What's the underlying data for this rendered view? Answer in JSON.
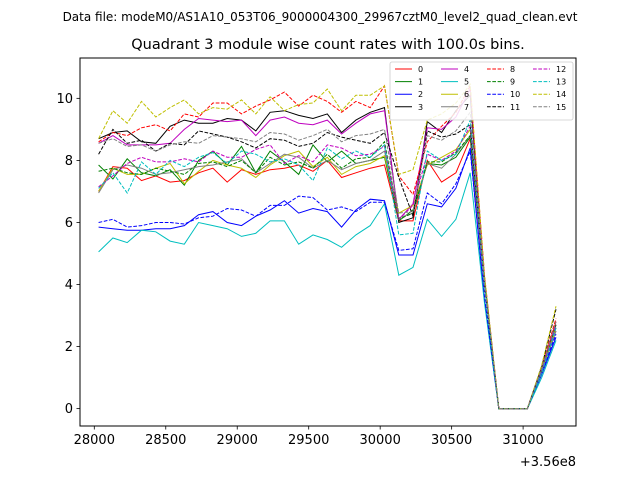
{
  "suptitle": "Data file: modeM0/AS1A10_053T06_9000004300_29967cztM0_level2_quad_clean.evt",
  "chart_data": {
    "type": "line",
    "title": "Quadrant 3 module wise count rates with 100.0s bins.",
    "xlabel": "",
    "ylabel": "",
    "x_offset_label": "+3.56e8",
    "xlim": [
      27900,
      31370
    ],
    "ylim": [
      -0.56,
      11.3
    ],
    "x_ticks": [
      28000,
      28500,
      29000,
      29500,
      30000,
      30500,
      31000
    ],
    "x_tick_labels": [
      "28000",
      "28500",
      "29000",
      "29500",
      "30000",
      "30500",
      "31000"
    ],
    "y_ticks": [
      0,
      2,
      4,
      6,
      8,
      10
    ],
    "y_tick_labels": [
      "0",
      "2",
      "4",
      "6",
      "8",
      "10"
    ],
    "legend_location": "upper-right",
    "x": [
      28030,
      28130,
      28230,
      28330,
      28430,
      28530,
      28630,
      28730,
      28830,
      28930,
      29030,
      29130,
      29230,
      29330,
      29430,
      29530,
      29630,
      29730,
      29830,
      29930,
      30030,
      30130,
      30230,
      30330,
      30430,
      30530,
      30630,
      30730,
      30830,
      30930,
      31030,
      31130,
      31230
    ],
    "series": [
      {
        "name": "0",
        "color": "#ff0000",
        "dash": "solid",
        "values": [
          7.0,
          7.8,
          7.75,
          7.35,
          7.5,
          7.3,
          7.35,
          7.6,
          7.75,
          7.3,
          7.7,
          7.55,
          7.7,
          7.75,
          7.85,
          7.65,
          8.0,
          7.45,
          7.6,
          7.75,
          7.85,
          6.05,
          6.05,
          8.0,
          7.3,
          7.6,
          8.7,
          4.0,
          0.0,
          0.0,
          0.0,
          1.3,
          2.8
        ]
      },
      {
        "name": "1",
        "color": "#008000",
        "dash": "solid",
        "values": [
          7.85,
          7.4,
          8.05,
          7.6,
          7.5,
          7.7,
          7.2,
          8.0,
          8.3,
          7.85,
          8.45,
          7.6,
          8.3,
          7.95,
          7.55,
          8.5,
          7.95,
          8.3,
          7.9,
          8.0,
          8.1,
          6.05,
          6.4,
          7.9,
          7.85,
          8.1,
          8.75,
          4.2,
          0.0,
          0.0,
          0.0,
          1.2,
          2.7
        ]
      },
      {
        "name": "2",
        "color": "#0000ff",
        "dash": "solid",
        "values": [
          5.85,
          5.8,
          5.75,
          5.75,
          5.8,
          5.8,
          5.9,
          6.25,
          6.35,
          6.0,
          5.9,
          6.2,
          6.4,
          6.7,
          6.3,
          6.45,
          6.35,
          5.85,
          6.4,
          6.75,
          6.7,
          4.95,
          4.95,
          6.6,
          6.5,
          7.1,
          8.4,
          3.5,
          0.0,
          0.0,
          0.0,
          1.1,
          2.3
        ]
      },
      {
        "name": "3",
        "color": "#000000",
        "dash": "solid",
        "values": [
          8.7,
          8.9,
          8.95,
          8.6,
          8.55,
          9.1,
          9.3,
          9.2,
          9.2,
          9.35,
          9.3,
          8.95,
          9.55,
          9.6,
          9.45,
          9.35,
          9.5,
          8.9,
          9.3,
          9.55,
          9.7,
          6.0,
          6.15,
          9.25,
          8.9,
          9.6,
          10.1,
          4.0,
          0.0,
          0.0,
          0.0,
          1.25,
          2.6
        ]
      },
      {
        "name": "4",
        "color": "#bf00bf",
        "dash": "solid",
        "values": [
          8.55,
          8.8,
          8.5,
          8.5,
          8.5,
          8.55,
          9.0,
          9.35,
          9.3,
          9.25,
          9.3,
          8.8,
          9.3,
          9.4,
          9.2,
          9.15,
          9.3,
          8.85,
          9.2,
          9.5,
          9.6,
          6.1,
          6.6,
          9.05,
          9.0,
          9.4,
          10.3,
          4.2,
          0.0,
          0.0,
          0.0,
          1.3,
          2.5
        ]
      },
      {
        "name": "5",
        "color": "#00bfbf",
        "dash": "solid",
        "values": [
          5.05,
          5.5,
          5.35,
          5.75,
          5.7,
          5.4,
          5.3,
          6.0,
          5.9,
          5.8,
          5.55,
          5.65,
          6.05,
          6.05,
          5.3,
          5.6,
          5.45,
          5.2,
          5.6,
          5.9,
          6.6,
          4.3,
          4.55,
          6.1,
          5.55,
          6.1,
          7.6,
          3.4,
          0.0,
          0.0,
          0.0,
          1.0,
          2.2
        ]
      },
      {
        "name": "6",
        "color": "#bfbf00",
        "dash": "solid",
        "values": [
          7.0,
          7.75,
          7.55,
          7.55,
          7.75,
          7.9,
          7.25,
          7.65,
          8.0,
          7.85,
          7.75,
          7.45,
          7.85,
          8.15,
          8.3,
          7.8,
          8.1,
          7.55,
          7.8,
          7.9,
          8.15,
          6.3,
          6.55,
          7.85,
          8.1,
          8.35,
          9.0,
          4.1,
          0.0,
          0.0,
          0.0,
          1.2,
          2.6
        ]
      },
      {
        "name": "7",
        "color": "#808080",
        "dash": "solid",
        "values": [
          6.95,
          7.7,
          7.85,
          7.75,
          7.55,
          7.6,
          7.7,
          7.8,
          7.85,
          7.95,
          8.05,
          7.6,
          7.9,
          8.2,
          8.1,
          7.75,
          8.0,
          7.7,
          7.9,
          8.0,
          8.3,
          6.15,
          6.3,
          7.9,
          7.75,
          8.2,
          8.8,
          4.0,
          0.0,
          0.0,
          0.0,
          1.15,
          2.5
        ]
      },
      {
        "name": "8",
        "color": "#ff0000",
        "dash": "dashed",
        "values": [
          8.6,
          8.9,
          8.8,
          9.05,
          9.15,
          8.95,
          9.5,
          9.4,
          9.85,
          9.85,
          9.5,
          9.75,
          9.95,
          10.2,
          9.75,
          10.1,
          9.9,
          9.55,
          9.9,
          9.7,
          10.4,
          7.5,
          6.9,
          8.6,
          9.1,
          9.55,
          10.4,
          4.3,
          0.0,
          0.0,
          0.0,
          1.35,
          2.9
        ]
      },
      {
        "name": "9",
        "color": "#008000",
        "dash": "dashed",
        "values": [
          7.65,
          7.75,
          7.6,
          7.55,
          7.75,
          7.65,
          7.55,
          7.9,
          7.95,
          7.8,
          8.0,
          7.6,
          8.1,
          7.85,
          7.95,
          7.75,
          8.2,
          7.75,
          8.05,
          8.1,
          8.6,
          6.1,
          6.3,
          7.95,
          7.95,
          8.25,
          8.8,
          4.1,
          0.0,
          0.0,
          0.0,
          1.25,
          2.7
        ]
      },
      {
        "name": "10",
        "color": "#0000ff",
        "dash": "dashed",
        "values": [
          6.0,
          6.1,
          5.85,
          5.9,
          6.0,
          6.0,
          5.95,
          6.15,
          6.2,
          6.45,
          6.4,
          6.2,
          6.55,
          6.55,
          6.85,
          6.8,
          6.4,
          6.5,
          6.35,
          6.65,
          6.65,
          5.1,
          5.15,
          6.95,
          6.6,
          7.25,
          8.3,
          3.6,
          0.0,
          0.0,
          0.0,
          1.15,
          2.4
        ]
      },
      {
        "name": "11",
        "color": "#000000",
        "dash": "dashed",
        "values": [
          8.2,
          9.0,
          8.55,
          8.65,
          8.3,
          8.55,
          8.5,
          8.95,
          8.85,
          8.75,
          8.6,
          8.4,
          8.7,
          8.65,
          8.45,
          8.55,
          8.9,
          8.75,
          8.65,
          8.55,
          8.9,
          7.45,
          6.2,
          8.95,
          8.75,
          8.85,
          9.15,
          4.0,
          0.0,
          0.0,
          0.0,
          1.35,
          3.2
        ]
      },
      {
        "name": "12",
        "color": "#bf00bf",
        "dash": "dashed",
        "values": [
          7.15,
          7.5,
          7.9,
          8.1,
          7.95,
          7.95,
          8.05,
          7.95,
          8.3,
          8.1,
          8.1,
          8.35,
          8.5,
          7.9,
          8.15,
          7.95,
          8.5,
          8.4,
          8.15,
          8.2,
          8.45,
          6.1,
          6.55,
          8.2,
          8.0,
          8.3,
          9.1,
          4.1,
          0.0,
          0.0,
          0.0,
          1.25,
          2.7
        ]
      },
      {
        "name": "13",
        "color": "#00bfbf",
        "dash": "dashed",
        "values": [
          7.1,
          7.6,
          6.95,
          7.95,
          7.55,
          8.0,
          7.8,
          8.1,
          8.25,
          7.9,
          8.3,
          8.2,
          7.95,
          8.05,
          7.85,
          7.35,
          8.4,
          8.05,
          8.3,
          8.1,
          8.5,
          5.6,
          5.65,
          8.3,
          8.0,
          8.2,
          9.3,
          4.0,
          0.0,
          0.0,
          0.0,
          1.15,
          2.6
        ]
      },
      {
        "name": "14",
        "color": "#bfbf00",
        "dash": "dashed",
        "values": [
          8.7,
          9.6,
          9.2,
          9.9,
          9.4,
          9.7,
          9.95,
          9.5,
          9.7,
          9.65,
          9.95,
          9.5,
          10.05,
          9.6,
          9.8,
          9.85,
          10.3,
          9.6,
          10.1,
          10.1,
          10.4,
          7.55,
          7.7,
          9.3,
          9.5,
          9.85,
          10.45,
          4.3,
          0.0,
          0.0,
          0.0,
          1.4,
          3.3
        ]
      },
      {
        "name": "15",
        "color": "#808080",
        "dash": "dashed",
        "values": [
          8.55,
          8.7,
          8.45,
          8.5,
          8.3,
          8.5,
          8.6,
          8.55,
          8.8,
          8.75,
          8.7,
          8.6,
          8.9,
          8.85,
          8.65,
          8.8,
          9.0,
          8.6,
          8.8,
          8.85,
          9.0,
          6.3,
          6.35,
          8.8,
          8.65,
          8.95,
          9.55,
          4.1,
          0.0,
          0.0,
          0.0,
          1.3,
          2.8
        ]
      }
    ]
  }
}
